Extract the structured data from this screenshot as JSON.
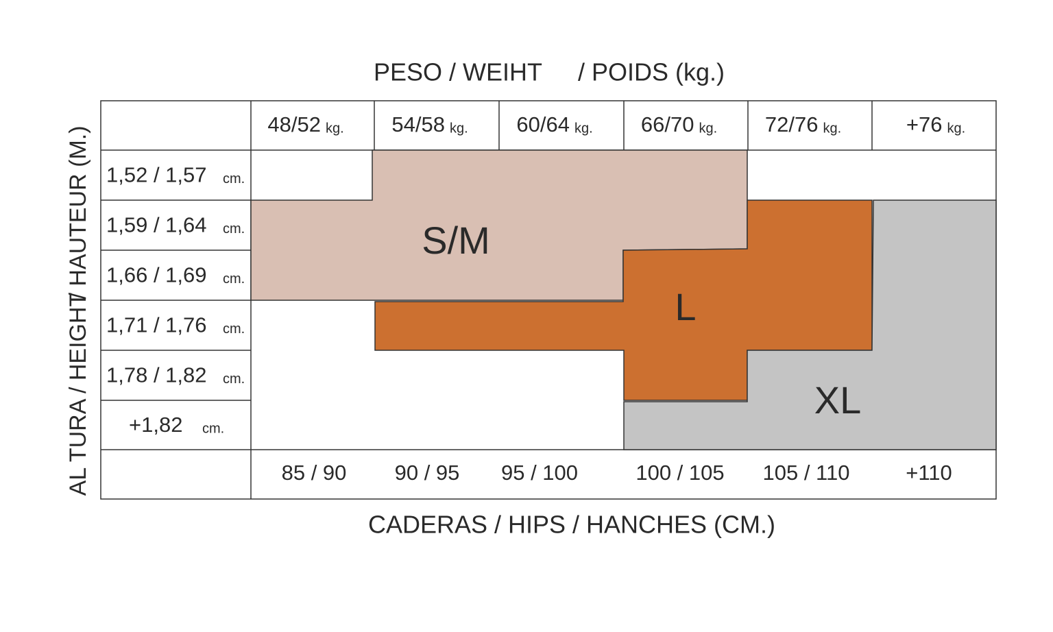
{
  "header": {
    "title_left": "PESO / WEIHT",
    "title_right": "/ POIDS (kg.)"
  },
  "weights": [
    {
      "value": "48/52",
      "unit": "kg."
    },
    {
      "value": "54/58",
      "unit": "kg."
    },
    {
      "value": "60/64",
      "unit": "kg."
    },
    {
      "value": "66/70",
      "unit": "kg."
    },
    {
      "value": "72/76",
      "unit": "kg."
    },
    {
      "value": "+76",
      "unit": "kg."
    }
  ],
  "heights": [
    {
      "value": "1,52 / 1,57",
      "unit": "cm."
    },
    {
      "value": "1,59 / 1,64",
      "unit": "cm."
    },
    {
      "value": "1,66 / 1,69",
      "unit": "cm."
    },
    {
      "value": "1,71 / 1,76",
      "unit": "cm."
    },
    {
      "value": "1,78 / 1,82",
      "unit": "cm."
    },
    {
      "value": "+1,82",
      "unit": "cm."
    }
  ],
  "hips": [
    "85 / 90",
    "90 / 95",
    "95 / 100",
    "100 / 105",
    "105 / 110",
    "+110"
  ],
  "side_label": {
    "lower": "AL TURA / HEIGHT",
    "upper": "/ HAUTEUR (M.)"
  },
  "footer": {
    "title": "CADERAS / HIPS / HANCHES (CM.)"
  },
  "zones": [
    {
      "label": "S/M"
    },
    {
      "label": "L"
    },
    {
      "label": "XL"
    }
  ]
}
